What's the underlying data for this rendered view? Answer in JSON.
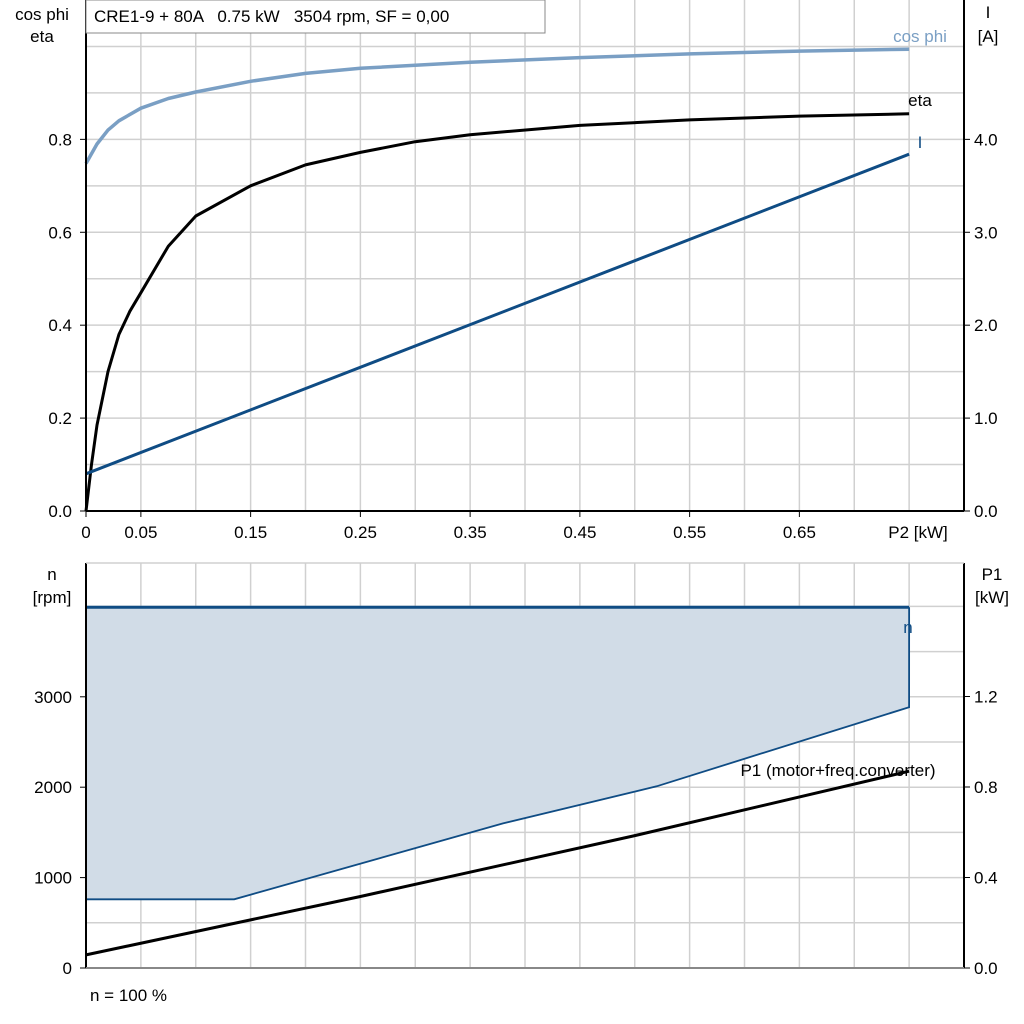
{
  "chart_data": [
    {
      "type": "line",
      "title": "CRE1-9 + 80A   0.75 kW   3504 rpm, SF = 0,00",
      "xlabel": "P2 [kW]",
      "ylabel_left": [
        "cos phi",
        "eta"
      ],
      "ylabel_right": [
        "I",
        "[A]"
      ],
      "xlim": [
        0,
        0.8
      ],
      "ylim_left": [
        0,
        1.1
      ],
      "ylim_right": [
        0,
        5.5
      ],
      "grid": true,
      "x_tick_labels": [
        "0",
        "0.05",
        "0.15",
        "0.25",
        "0.35",
        "0.45",
        "0.55",
        "0.65"
      ],
      "x_tick_values": [
        0,
        0.05,
        0.15,
        0.25,
        0.35,
        0.45,
        0.55,
        0.65
      ],
      "y_left_ticks": [
        "0.0",
        "0.2",
        "0.4",
        "0.6",
        "0.8"
      ],
      "y_left_tick_values": [
        0,
        0.2,
        0.4,
        0.6,
        0.8
      ],
      "y_right_ticks": [
        "0.0",
        "1.0",
        "2.0",
        "3.0",
        "4.0"
      ],
      "y_right_tick_values": [
        0,
        1,
        2,
        3,
        4
      ],
      "series": [
        {
          "name": "cos phi",
          "axis": "left",
          "color": "#7a9fc4",
          "x": [
            0,
            0.01,
            0.02,
            0.03,
            0.05,
            0.075,
            0.1,
            0.15,
            0.2,
            0.25,
            0.35,
            0.45,
            0.55,
            0.65,
            0.75
          ],
          "y": [
            0.748,
            0.79,
            0.82,
            0.84,
            0.867,
            0.888,
            0.902,
            0.925,
            0.942,
            0.953,
            0.966,
            0.976,
            0.984,
            0.99,
            0.994
          ]
        },
        {
          "name": "eta",
          "axis": "left",
          "color": "#000000",
          "x": [
            0,
            0.005,
            0.01,
            0.02,
            0.03,
            0.04,
            0.05,
            0.075,
            0.1,
            0.15,
            0.2,
            0.25,
            0.3,
            0.35,
            0.45,
            0.55,
            0.65,
            0.75
          ],
          "y": [
            0,
            0.1,
            0.185,
            0.3,
            0.38,
            0.43,
            0.47,
            0.57,
            0.635,
            0.7,
            0.745,
            0.772,
            0.795,
            0.81,
            0.83,
            0.842,
            0.85,
            0.855
          ]
        },
        {
          "name": "I",
          "axis": "right",
          "color": "#0f4c84",
          "x": [
            0,
            0.75
          ],
          "y": [
            0.4,
            3.84
          ]
        }
      ]
    },
    {
      "type": "area",
      "xlabel": "",
      "ylabel_left": [
        "n",
        "[rpm]"
      ],
      "ylabel_right": [
        "P1",
        "[kW]"
      ],
      "footer": "n = 100 %",
      "xlim": [
        0,
        0.8
      ],
      "ylim_left": [
        0,
        4480
      ],
      "ylim_right": [
        0,
        1.79
      ],
      "grid": true,
      "y_left_ticks": [
        "0",
        "1000",
        "2000",
        "3000"
      ],
      "y_left_tick_values": [
        0,
        1000,
        2000,
        3000
      ],
      "y_right_ticks": [
        "0.0",
        "0.4",
        "0.8",
        "1.2"
      ],
      "y_right_tick_values": [
        0,
        0.4,
        0.8,
        1.2
      ],
      "n_area": {
        "name": "n",
        "color": "#0f4c84",
        "fill": "#d1dce7",
        "upper": {
          "x": [
            0,
            0.75
          ],
          "y": [
            3990,
            3990
          ]
        },
        "lower": {
          "x": [
            0,
            0.135,
            0.38,
            0.52,
            0.75
          ],
          "y": [
            760,
            760,
            1600,
            2010,
            2885
          ]
        }
      },
      "p1": {
        "name": "P1 (motor+freq.converter)",
        "axis": "right",
        "color": "#000000",
        "x": [
          0,
          0.25,
          0.5,
          0.75
        ],
        "y": [
          0.058,
          0.316,
          0.585,
          0.87
        ]
      }
    }
  ]
}
